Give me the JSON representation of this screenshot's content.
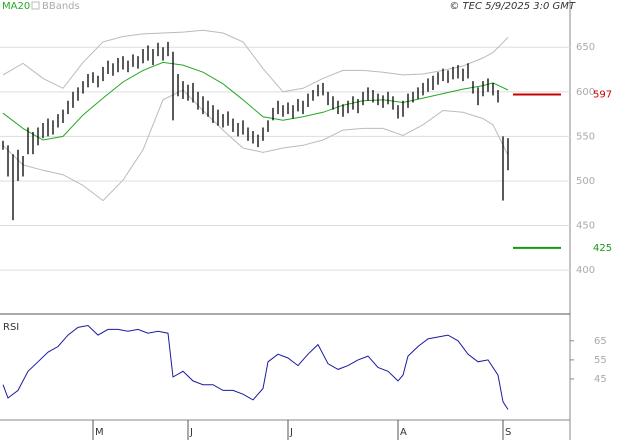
{
  "chart_data": [
    {
      "type": "ohlc",
      "source": "© TEC 5/9/2025 3:0 GMT",
      "color": "#000000",
      "xlim": [
        -0.6,
        113.4
      ],
      "ylim": [
        353,
        703
      ],
      "yticks": [
        400,
        450,
        500,
        550,
        600,
        650
      ],
      "grid": true,
      "high": [
        545,
        540,
        530,
        535,
        528,
        560,
        555,
        560,
        565,
        570,
        568,
        575,
        580,
        590,
        600,
        605,
        612,
        620,
        622,
        618,
        628,
        635,
        632,
        638,
        640,
        635,
        642,
        640,
        648,
        652,
        648,
        655,
        650,
        656,
        645,
        620,
        612,
        608,
        610,
        600,
        595,
        590,
        585,
        580,
        575,
        578,
        570,
        565,
        568,
        560,
        556,
        552,
        560,
        568,
        582,
        590,
        585,
        588,
        585,
        592,
        590,
        598,
        602,
        608,
        610,
        600,
        595,
        590,
        586,
        590,
        595,
        592,
        600,
        605,
        602,
        598,
        596,
        600,
        595,
        585,
        590,
        598,
        600,
        605,
        610,
        615,
        618,
        622,
        626,
        624,
        628,
        630,
        626,
        632,
        612,
        605,
        612,
        615,
        610,
        602,
        550,
        548
      ],
      "low": [
        535,
        505,
        456,
        500,
        505,
        530,
        530,
        540,
        548,
        550,
        552,
        560,
        565,
        575,
        582,
        590,
        598,
        605,
        610,
        605,
        612,
        620,
        618,
        622,
        625,
        622,
        628,
        626,
        632,
        635,
        630,
        640,
        635,
        640,
        568,
        595,
        592,
        590,
        588,
        580,
        575,
        572,
        565,
        562,
        560,
        562,
        555,
        550,
        552,
        545,
        542,
        538,
        545,
        555,
        568,
        575,
        572,
        575,
        570,
        578,
        575,
        583,
        590,
        595,
        596,
        585,
        580,
        575,
        572,
        576,
        580,
        576,
        585,
        590,
        588,
        585,
        582,
        586,
        580,
        570,
        572,
        582,
        588,
        592,
        596,
        600,
        602,
        608,
        612,
        610,
        614,
        615,
        612,
        615,
        598,
        585,
        595,
        600,
        596,
        588,
        478,
        512
      ],
      "series": [
        {
          "name": "MA20",
          "color": "#22aa22",
          "x": [
            0,
            4,
            8,
            12,
            16,
            20,
            24,
            28,
            32,
            36,
            40,
            44,
            48,
            52,
            56,
            60,
            64,
            68,
            72,
            76,
            80,
            84,
            88,
            92,
            96,
            98,
            101
          ],
          "values": [
            576,
            559,
            546,
            550,
            574,
            593,
            611,
            624,
            633,
            630,
            622,
            609,
            591,
            572,
            568,
            572,
            577,
            585,
            590,
            591,
            588,
            593,
            598,
            603,
            607,
            610,
            602
          ]
        },
        {
          "name": "BBands",
          "color": "#bbbbbb",
          "x": [
            0,
            4,
            8,
            12,
            16,
            20,
            24,
            28,
            32,
            36,
            40,
            44,
            48,
            52,
            56,
            60,
            64,
            68,
            72,
            76,
            80,
            84,
            88,
            92,
            96,
            98,
            101
          ],
          "upper": [
            619,
            632,
            615,
            604,
            633,
            656,
            662,
            665,
            666,
            667,
            669,
            666,
            656,
            626,
            600,
            604,
            615,
            624,
            624,
            622,
            619,
            620,
            624,
            629,
            638,
            644,
            661
          ],
          "lower": [
            540,
            518,
            512,
            507,
            495,
            478,
            501,
            535,
            591,
            602,
            579,
            557,
            537,
            532,
            537,
            540,
            546,
            557,
            559,
            559,
            551,
            563,
            579,
            577,
            570,
            563,
            529
          ]
        }
      ],
      "levels": [
        {
          "value": 597,
          "color": "#cc0000"
        },
        {
          "value": 425,
          "color": "#119911"
        }
      ]
    },
    {
      "type": "line",
      "title": "RSI",
      "xlim": [
        -0.6,
        113.4
      ],
      "ylim": [
        13,
        78
      ],
      "yticks": [
        45,
        55,
        65
      ],
      "xticks": [
        {
          "value": 18,
          "label": "M"
        },
        {
          "value": 37,
          "label": "J"
        },
        {
          "value": 57,
          "label": "J"
        },
        {
          "value": 79,
          "label": "A"
        },
        {
          "value": 100,
          "label": "S"
        }
      ],
      "series": [
        {
          "color": "#1a1aa0",
          "x": [
            0,
            1,
            3,
            5,
            7,
            9,
            11,
            13,
            15,
            17,
            19,
            21,
            23,
            25,
            27,
            29,
            31,
            33,
            34,
            36,
            38,
            40,
            42,
            44,
            46,
            48,
            50,
            52,
            53,
            55,
            57,
            59,
            61,
            63,
            65,
            67,
            69,
            71,
            73,
            75,
            77,
            79,
            80,
            81,
            83,
            85,
            87,
            89,
            91,
            93,
            95,
            97,
            99,
            100,
            101
          ],
          "values": [
            42,
            35,
            39,
            49,
            54,
            59,
            62,
            68,
            72,
            73,
            68,
            71,
            71,
            70,
            71,
            69,
            70,
            69,
            46,
            49,
            44,
            42,
            42,
            39,
            39,
            37,
            34,
            40,
            54,
            58,
            56,
            52,
            58,
            63,
            53,
            50,
            52,
            55,
            57,
            51,
            49,
            44,
            47,
            57,
            62,
            66,
            67,
            68,
            65,
            58,
            54,
            55,
            47,
            33,
            29
          ]
        }
      ]
    }
  ]
}
